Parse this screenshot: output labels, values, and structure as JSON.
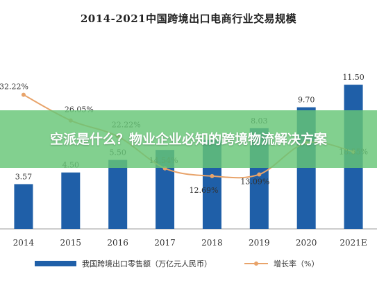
{
  "chart_data": {
    "type": "bar",
    "title": "2014-2021中国跨境出口电商行业交易规模",
    "categories": [
      "2014",
      "2015",
      "2016",
      "2017",
      "2018",
      "2019",
      "2020",
      "2021E"
    ],
    "ylim": [
      0,
      13
    ],
    "series": [
      {
        "name": "我国跨境出口零售额（万亿元人民币）",
        "type": "bar",
        "values": [
          3.57,
          4.5,
          5.5,
          6.3,
          7.1,
          8.03,
          9.7,
          11.5
        ],
        "labels": [
          "3.57",
          "4.50",
          "5.50",
          "",
          "",
          "8.03",
          "9.70",
          "11.50"
        ],
        "color": "#1f5fa8"
      },
      {
        "name": "增长率（%）",
        "type": "line",
        "axis": "secondary",
        "values": [
          32.22,
          26.05,
          22.22,
          14.54,
          12.69,
          13.09,
          20.7,
          18.55
        ],
        "labels": [
          "32.22%",
          "26.05%",
          "22.22%",
          "14.54%",
          "12.69%",
          "13.09%",
          "",
          "18.55%"
        ],
        "color": "#e8a36a"
      }
    ],
    "y2lim": [
      0,
      45
    ],
    "grid": false,
    "legend": "bottom"
  },
  "overlay": {
    "text": "空派是什么？物业企业必知的跨境物流解决方案"
  }
}
